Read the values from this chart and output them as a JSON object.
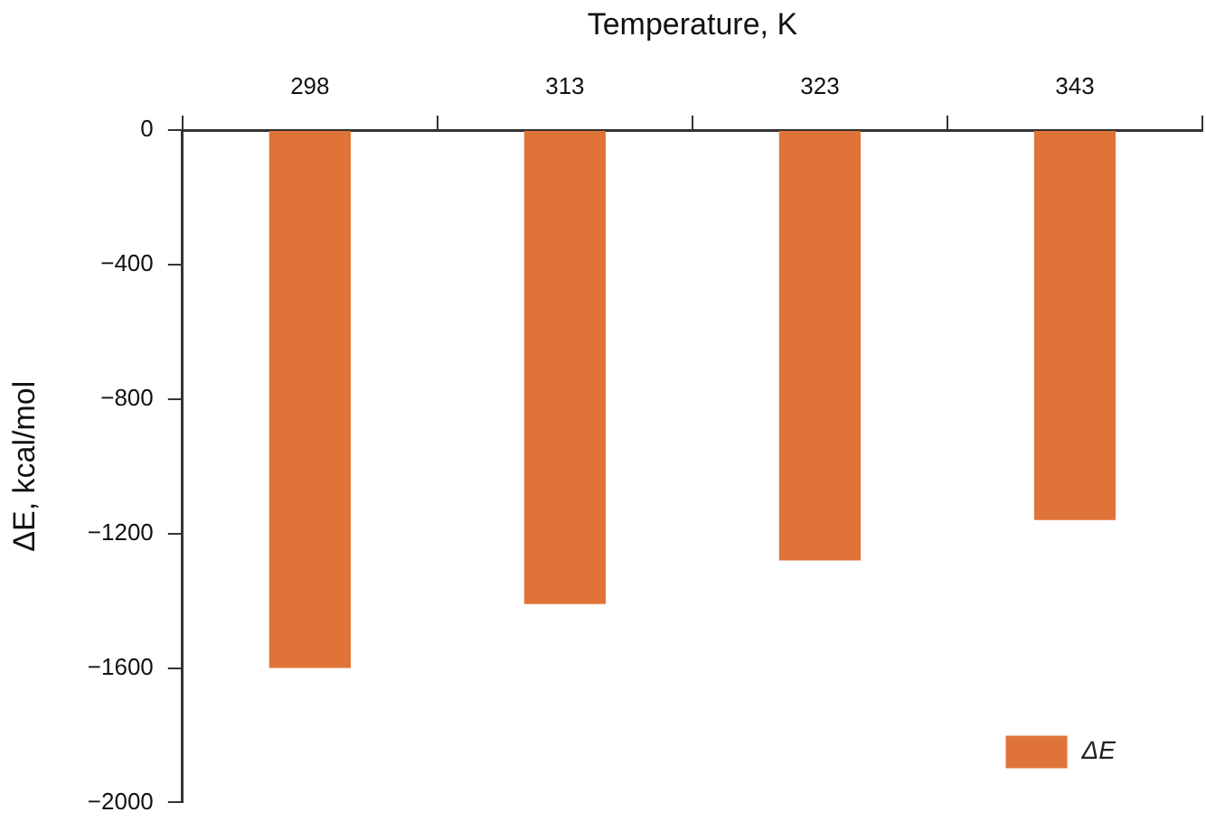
{
  "chart_data": {
    "type": "bar",
    "xlabel": "Temperature, K",
    "ylabel": "ΔE, kcal/mol",
    "categories": [
      "298",
      "313",
      "323",
      "343"
    ],
    "series": [
      {
        "name": "ΔE",
        "color": "#e07438",
        "values": [
          -1600,
          -1410,
          -1280,
          -1160
        ]
      }
    ],
    "ylim": [
      -2000,
      0
    ],
    "yticks": [
      {
        "value": -2000,
        "label": "−2000"
      },
      {
        "value": -1600,
        "label": "−1600"
      },
      {
        "value": -1200,
        "label": "−1200"
      },
      {
        "value": -800,
        "label": "−800"
      },
      {
        "value": -400,
        "label": "−400"
      },
      0
    ],
    "grid": false,
    "legend": "bottom right"
  }
}
